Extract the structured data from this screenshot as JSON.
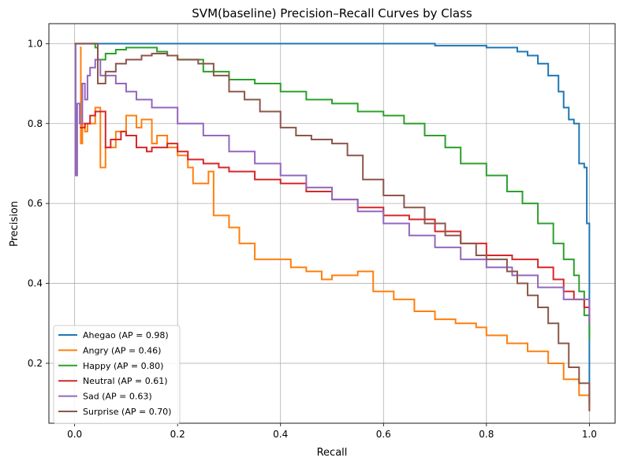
{
  "chart_data": {
    "type": "line",
    "title": "SVM(baseline) Precision–Recall Curves by Class",
    "xlabel": "Recall",
    "ylabel": "Precision",
    "xlim": [
      -0.05,
      1.05
    ],
    "ylim": [
      0.05,
      1.05
    ],
    "xticks": [
      0.0,
      0.2,
      0.4,
      0.6,
      0.8,
      1.0
    ],
    "xtick_labels": [
      "0.0",
      "0.2",
      "0.4",
      "0.6",
      "0.8",
      "1.0"
    ],
    "yticks": [
      0.2,
      0.4,
      0.6,
      0.8,
      1.0
    ],
    "ytick_labels": [
      "0.2",
      "0.4",
      "0.6",
      "0.8",
      "1.0"
    ],
    "grid": true,
    "legend_position": "lower-left",
    "series": [
      {
        "name": "Ahegao (AP = 0.98)",
        "color": "#1f77b4",
        "x": [
          0.0,
          0.01,
          0.3,
          0.5,
          0.69,
          0.7,
          0.8,
          0.84,
          0.86,
          0.88,
          0.9,
          0.92,
          0.94,
          0.95,
          0.96,
          0.97,
          0.98,
          0.99,
          0.995,
          1.0,
          1.0
        ],
        "y": [
          1.0,
          1.0,
          1.0,
          1.0,
          1.0,
          0.995,
          0.99,
          0.99,
          0.98,
          0.97,
          0.95,
          0.92,
          0.88,
          0.84,
          0.81,
          0.8,
          0.7,
          0.69,
          0.55,
          0.54,
          0.1
        ]
      },
      {
        "name": "Angry (AP = 0.46)",
        "color": "#ff7f0e",
        "x": [
          0.01,
          0.012,
          0.015,
          0.02,
          0.025,
          0.04,
          0.05,
          0.06,
          0.08,
          0.1,
          0.12,
          0.13,
          0.15,
          0.16,
          0.18,
          0.2,
          0.22,
          0.23,
          0.26,
          0.27,
          0.3,
          0.32,
          0.35,
          0.38,
          0.42,
          0.45,
          0.48,
          0.5,
          0.55,
          0.58,
          0.62,
          0.66,
          0.7,
          0.74,
          0.78,
          0.8,
          0.84,
          0.88,
          0.92,
          0.95,
          0.98,
          1.0
        ],
        "y": [
          0.99,
          0.75,
          0.8,
          0.78,
          0.8,
          0.84,
          0.69,
          0.74,
          0.78,
          0.82,
          0.79,
          0.81,
          0.75,
          0.77,
          0.74,
          0.72,
          0.69,
          0.65,
          0.68,
          0.57,
          0.54,
          0.5,
          0.46,
          0.46,
          0.44,
          0.43,
          0.41,
          0.42,
          0.43,
          0.38,
          0.36,
          0.33,
          0.31,
          0.3,
          0.29,
          0.27,
          0.25,
          0.23,
          0.2,
          0.16,
          0.12,
          0.08
        ]
      },
      {
        "name": "Happy (AP = 0.80)",
        "color": "#2ca02c",
        "x": [
          0.03,
          0.04,
          0.045,
          0.06,
          0.08,
          0.1,
          0.13,
          0.16,
          0.18,
          0.2,
          0.25,
          0.3,
          0.35,
          0.4,
          0.45,
          0.5,
          0.55,
          0.6,
          0.64,
          0.68,
          0.72,
          0.75,
          0.8,
          0.84,
          0.87,
          0.9,
          0.93,
          0.95,
          0.97,
          0.98,
          0.99,
          1.0
        ],
        "y": [
          1.0,
          0.99,
          0.96,
          0.975,
          0.985,
          0.99,
          0.99,
          0.98,
          0.97,
          0.96,
          0.93,
          0.91,
          0.9,
          0.88,
          0.86,
          0.85,
          0.83,
          0.82,
          0.8,
          0.77,
          0.74,
          0.7,
          0.67,
          0.63,
          0.6,
          0.55,
          0.5,
          0.46,
          0.42,
          0.38,
          0.32,
          0.26
        ]
      },
      {
        "name": "Neutral (AP = 0.61)",
        "color": "#d62728",
        "x": [
          0.01,
          0.02,
          0.03,
          0.04,
          0.06,
          0.07,
          0.09,
          0.1,
          0.12,
          0.14,
          0.15,
          0.18,
          0.2,
          0.22,
          0.25,
          0.28,
          0.3,
          0.35,
          0.4,
          0.45,
          0.5,
          0.55,
          0.6,
          0.65,
          0.7,
          0.75,
          0.8,
          0.85,
          0.9,
          0.93,
          0.95,
          0.97,
          0.99,
          1.0
        ],
        "y": [
          0.79,
          0.8,
          0.82,
          0.83,
          0.74,
          0.76,
          0.78,
          0.77,
          0.74,
          0.73,
          0.74,
          0.75,
          0.73,
          0.71,
          0.7,
          0.69,
          0.68,
          0.66,
          0.65,
          0.63,
          0.61,
          0.59,
          0.57,
          0.56,
          0.53,
          0.5,
          0.47,
          0.46,
          0.44,
          0.41,
          0.38,
          0.36,
          0.34,
          0.3
        ]
      },
      {
        "name": "Sad (AP = 0.63)",
        "color": "#9467bd",
        "x": [
          0.0,
          0.002,
          0.005,
          0.01,
          0.015,
          0.02,
          0.025,
          0.03,
          0.04,
          0.05,
          0.08,
          0.1,
          0.12,
          0.15,
          0.2,
          0.25,
          0.3,
          0.35,
          0.4,
          0.45,
          0.5,
          0.55,
          0.6,
          0.65,
          0.7,
          0.75,
          0.8,
          0.85,
          0.9,
          0.95,
          1.0
        ],
        "y": [
          1.0,
          0.67,
          0.85,
          0.8,
          0.9,
          0.86,
          0.92,
          0.94,
          0.96,
          0.92,
          0.9,
          0.88,
          0.86,
          0.84,
          0.8,
          0.77,
          0.73,
          0.7,
          0.67,
          0.64,
          0.61,
          0.58,
          0.55,
          0.52,
          0.49,
          0.46,
          0.44,
          0.42,
          0.39,
          0.36,
          0.3
        ]
      },
      {
        "name": "Surprise (AP = 0.70)",
        "color": "#8c564b",
        "x": [
          0.0,
          0.04,
          0.045,
          0.06,
          0.08,
          0.1,
          0.13,
          0.15,
          0.18,
          0.2,
          0.24,
          0.27,
          0.3,
          0.33,
          0.36,
          0.4,
          0.43,
          0.46,
          0.5,
          0.53,
          0.56,
          0.6,
          0.64,
          0.68,
          0.72,
          0.75,
          0.78,
          0.8,
          0.84,
          0.86,
          0.88,
          0.9,
          0.92,
          0.94,
          0.96,
          0.98,
          1.0
        ],
        "y": [
          1.0,
          1.0,
          0.9,
          0.93,
          0.95,
          0.96,
          0.97,
          0.975,
          0.97,
          0.96,
          0.95,
          0.92,
          0.88,
          0.86,
          0.83,
          0.79,
          0.77,
          0.76,
          0.75,
          0.72,
          0.66,
          0.62,
          0.59,
          0.55,
          0.52,
          0.5,
          0.47,
          0.46,
          0.43,
          0.4,
          0.37,
          0.34,
          0.3,
          0.25,
          0.19,
          0.15,
          0.08
        ]
      }
    ]
  }
}
